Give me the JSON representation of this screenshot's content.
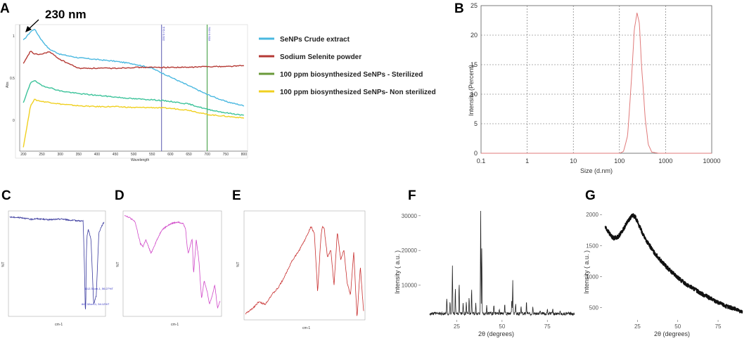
{
  "panels": {
    "A": {
      "label": "A",
      "peak_annotation": "230 nm",
      "xlabel": "Wavelength",
      "ylabel": "Abs",
      "xlim": [
        190,
        810
      ],
      "ylim": [
        -0.35,
        1.1
      ],
      "x_ticks": [
        "200",
        "250",
        "300",
        "350",
        "400",
        "450",
        "500",
        "550",
        "600",
        "650",
        "700",
        "750",
        "800"
      ],
      "y_ticks": [
        "1",
        "0.5",
        "0"
      ],
      "marker_labels": [
        "576 / 0.632",
        "700 / 0.618"
      ],
      "legend": [
        {
          "name": "SeNPs Crude extract",
          "color": "#4ab8e0"
        },
        {
          "name": "Sodium  Selenite powder",
          "color": "#b53a35"
        },
        {
          "name": "100 ppm biosynthesized  SeNPs - Sterilized",
          "color": "#6a9a3a"
        },
        {
          "name": "100 ppm biosynthesized  SeNPs- Non sterilized",
          "color": "#f0d020"
        }
      ]
    },
    "B": {
      "label": "B",
      "xlabel": "Size (d.nm)",
      "ylabel": "Intensity (Percent)",
      "x_ticks": [
        "0.1",
        "1",
        "10",
        "100",
        "1000",
        "10000"
      ],
      "y_ticks": [
        "0",
        "5",
        "10",
        "15",
        "20",
        "25"
      ]
    },
    "C": {
      "label": "C",
      "xlabel": "cm-1",
      "ylabel": "%T"
    },
    "D": {
      "label": "D",
      "xlabel": "cm-1",
      "ylabel": "%T"
    },
    "E": {
      "label": "E",
      "xlabel": "cm-1",
      "ylabel": "%T"
    },
    "F": {
      "label": "F",
      "xlabel": "2θ (degrees)",
      "ylabel": "Intensity  ( a.u. )",
      "x_ticks": [
        "25",
        "50",
        "75"
      ],
      "y_ticks": [
        "10000",
        "20000",
        "30000"
      ]
    },
    "G": {
      "label": "G",
      "xlabel": "2θ (degrees)",
      "ylabel": "Intensity  ( a.u. )",
      "x_ticks": [
        "25",
        "50",
        "75"
      ],
      "y_ticks": [
        "500",
        "1000",
        "1500",
        "2000"
      ]
    }
  },
  "chart_data": [
    {
      "panel": "A",
      "type": "line",
      "title": "",
      "xlabel": "Wavelength",
      "ylabel": "Abs",
      "xlim": [
        190,
        810
      ],
      "ylim": [
        -0.35,
        1.1
      ],
      "x": [
        200,
        220,
        230,
        250,
        270,
        300,
        350,
        400,
        450,
        500,
        550,
        600,
        650,
        700,
        750,
        800
      ],
      "series": [
        {
          "name": "SeNPs Crude extract",
          "values": [
            0.92,
            1.02,
            1.05,
            0.92,
            0.82,
            0.76,
            0.72,
            0.7,
            0.68,
            0.65,
            0.6,
            0.5,
            0.4,
            0.3,
            0.22,
            0.17
          ]
        },
        {
          "name": "Sodium  Selenite powder",
          "values": [
            0.65,
            0.8,
            0.76,
            0.76,
            0.79,
            0.7,
            0.6,
            0.6,
            0.6,
            0.61,
            0.61,
            0.61,
            0.61,
            0.62,
            0.62,
            0.63
          ]
        },
        {
          "name": "100 ppm biosynthesized  SeNPs - Sterilized",
          "values": [
            0.2,
            0.44,
            0.46,
            0.4,
            0.38,
            0.34,
            0.31,
            0.29,
            0.27,
            0.25,
            0.24,
            0.22,
            0.19,
            0.13,
            0.09,
            0.06
          ]
        },
        {
          "name": "100 ppm biosynthesized  SeNPs- Non sterilized",
          "values": [
            -0.3,
            0.18,
            0.24,
            0.22,
            0.21,
            0.19,
            0.17,
            0.16,
            0.16,
            0.15,
            0.15,
            0.14,
            0.12,
            0.07,
            0.05,
            0.03
          ]
        }
      ],
      "markers": [
        576,
        700
      ]
    },
    {
      "panel": "B",
      "type": "line",
      "xlabel": "Size (d.nm)",
      "ylabel": "Intensity (Percent)",
      "xscale": "log",
      "xlim": [
        0.1,
        10000
      ],
      "ylim": [
        0,
        25
      ],
      "x": [
        0.1,
        100,
        122,
        150,
        180,
        210,
        240,
        270,
        300,
        360,
        420,
        500,
        700,
        10000
      ],
      "values": [
        0,
        0,
        0.3,
        3,
        12,
        21,
        23.8,
        22,
        15,
        6,
        1.5,
        0.2,
        0,
        0
      ]
    },
    {
      "panel": "C",
      "type": "line",
      "xlabel": "cm-1",
      "ylabel": "%T",
      "xlim": [
        4000,
        400
      ],
      "ylim": [
        40,
        105
      ],
      "x": [
        4000,
        3500,
        3200,
        3000,
        2500,
        2000,
        1700,
        1200,
        1150,
        1120,
        1100,
        1080,
        1050,
        1000,
        900,
        800,
        700,
        600,
        500,
        400
      ],
      "values": [
        102,
        101.5,
        100.5,
        101,
        100.3,
        100.8,
        100,
        99.5,
        70,
        45,
        43,
        78,
        90,
        94,
        88,
        47,
        52,
        92,
        96,
        99
      ]
    },
    {
      "panel": "D",
      "type": "line",
      "xlabel": "cm-1",
      "ylabel": "%T",
      "xlim": [
        4000,
        400
      ],
      "ylim": [
        30,
        105
      ],
      "x": [
        4000,
        3800,
        3600,
        3400,
        3300,
        3200,
        3000,
        2800,
        2600,
        2400,
        2200,
        2000,
        1800,
        1700,
        1640,
        1600,
        1450,
        1400,
        1300,
        1200,
        1100,
        1000,
        900,
        800,
        700,
        600,
        500,
        400
      ],
      "values": [
        103,
        101,
        98,
        82,
        80,
        85,
        75,
        84,
        92,
        95,
        97,
        98,
        97,
        93,
        80,
        75,
        86,
        60,
        85,
        70,
        42,
        55,
        48,
        38,
        44,
        52,
        35,
        40
      ]
    },
    {
      "panel": "E",
      "type": "line",
      "xlabel": "cm-1",
      "ylabel": "%T",
      "xlim": [
        4000,
        400
      ],
      "ylim": [
        94,
        98.5
      ],
      "x": [
        4000,
        3800,
        3600,
        3400,
        3200,
        3000,
        2800,
        2600,
        2400,
        2200,
        2000,
        1900,
        1800,
        1700,
        1650,
        1600,
        1500,
        1400,
        1300,
        1200,
        1100,
        1000,
        900,
        800,
        700,
        600,
        500,
        400
      ],
      "values": [
        94.2,
        94.4,
        94.7,
        94.6,
        95.0,
        95.3,
        95.8,
        96.4,
        96.8,
        97.3,
        97.9,
        97.6,
        95.1,
        97.5,
        97.9,
        97.8,
        96.6,
        96.9,
        95.4,
        97.7,
        96.5,
        96.9,
        95.5,
        95.0,
        96.8,
        94.0,
        96.2,
        94.3
      ]
    },
    {
      "panel": "F",
      "type": "line",
      "xlabel": "2θ (degrees)",
      "ylabel": "Intensity  ( a.u. )",
      "xlim": [
        5,
        92
      ],
      "ylim": [
        0,
        33000
      ],
      "peaks": [
        [
          19.5,
          6000
        ],
        [
          21.3,
          5000
        ],
        [
          22.6,
          16000
        ],
        [
          24.2,
          9500
        ],
        [
          26.3,
          11000
        ],
        [
          28.5,
          5000
        ],
        [
          30.3,
          5000
        ],
        [
          31.8,
          7000
        ],
        [
          33.2,
          9000
        ],
        [
          35.5,
          4500
        ],
        [
          38.2,
          31500
        ],
        [
          38.8,
          21000
        ],
        [
          41.5,
          4500
        ],
        [
          45.5,
          4500
        ],
        [
          48.5,
          3500
        ],
        [
          51.5,
          4500
        ],
        [
          55.4,
          6000
        ],
        [
          55.9,
          11000
        ],
        [
          57.5,
          4500
        ],
        [
          60.5,
          4000
        ],
        [
          63.5,
          5500
        ],
        [
          67,
          3500
        ],
        [
          71,
          3000
        ],
        [
          75,
          3000
        ],
        [
          78,
          3000
        ],
        [
          82,
          2800
        ]
      ],
      "baseline": 1800
    },
    {
      "panel": "G",
      "type": "line",
      "xlabel": "2θ (degrees)",
      "ylabel": "Intensity  ( a.u. )",
      "xlim": [
        3,
        92
      ],
      "ylim": [
        300,
        2150
      ],
      "x": [
        5,
        8,
        10,
        13,
        16,
        19,
        22,
        24,
        26,
        30,
        35,
        40,
        45,
        50,
        55,
        60,
        65,
        70,
        75,
        80,
        85,
        90
      ],
      "values": [
        1800,
        1680,
        1620,
        1640,
        1750,
        1900,
        1990,
        1950,
        1820,
        1600,
        1400,
        1240,
        1100,
        980,
        880,
        800,
        720,
        650,
        580,
        520,
        480,
        430
      ]
    }
  ]
}
